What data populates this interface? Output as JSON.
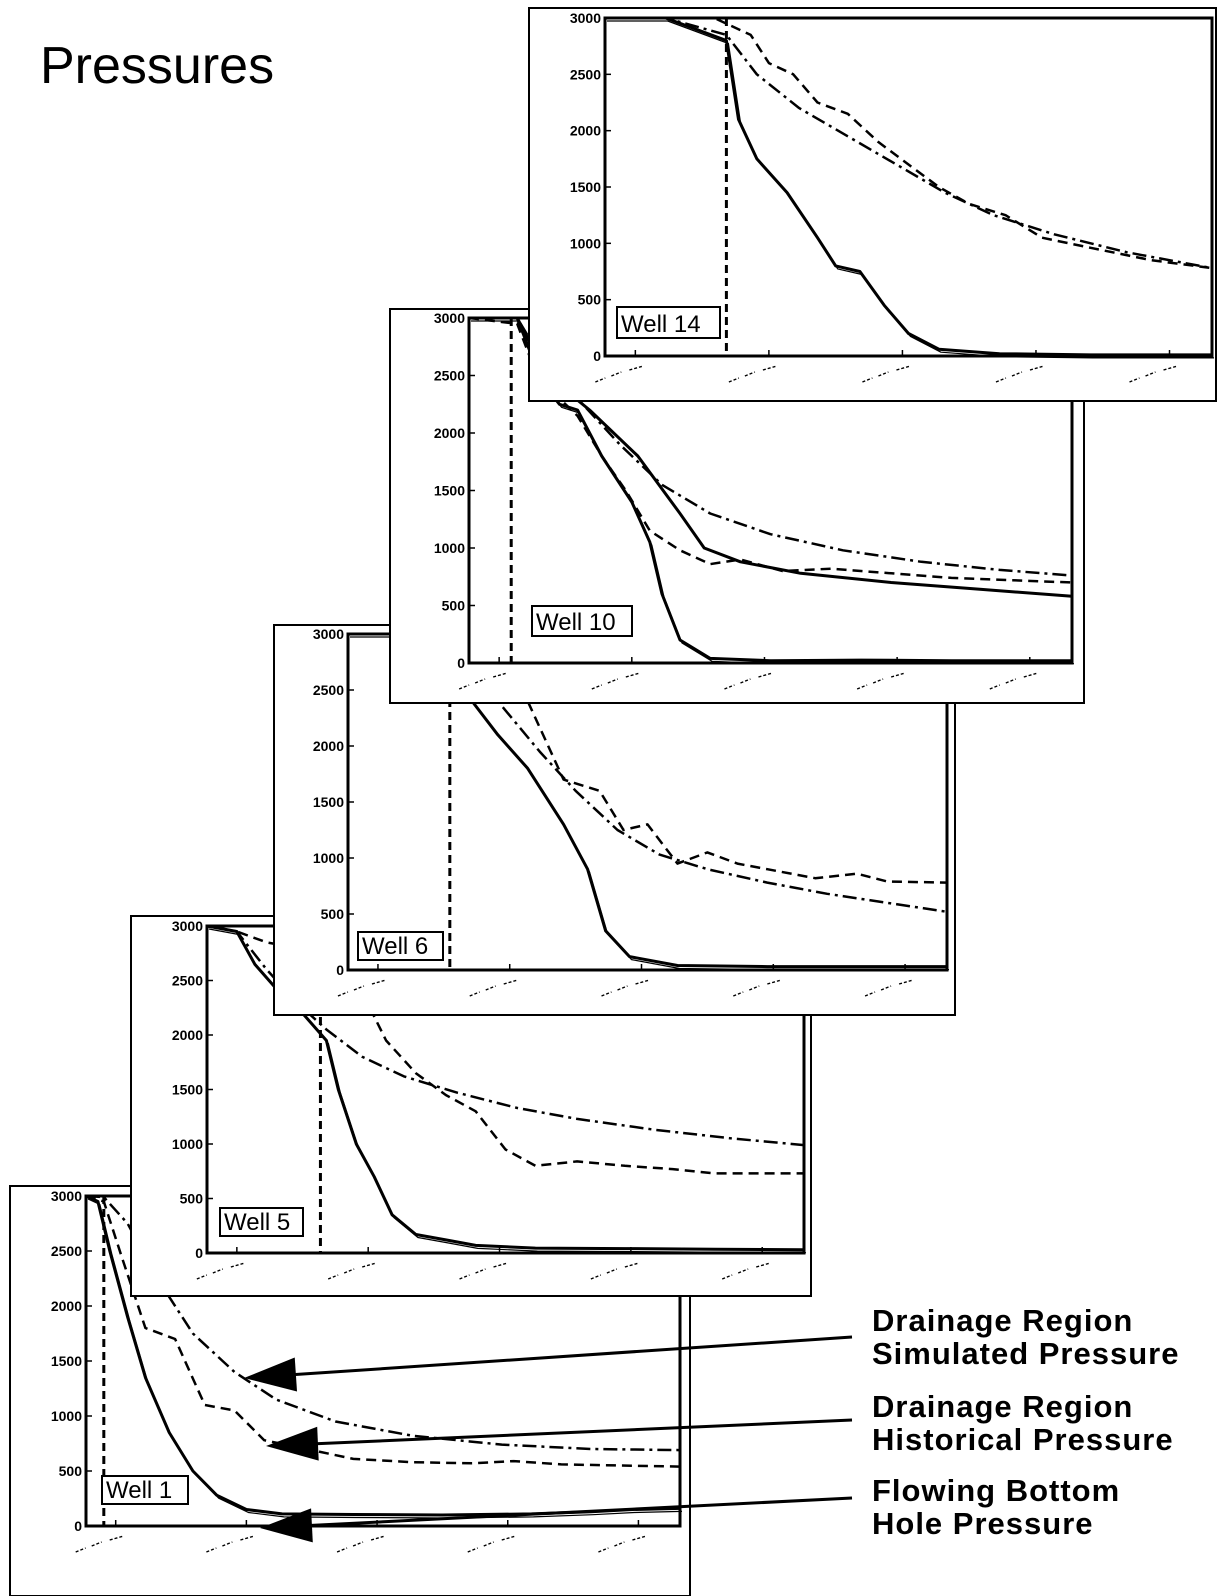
{
  "title": "Pressures",
  "legend": [
    {
      "key": "sim",
      "lines": [
        "Drainage Region",
        "Simulated Pressure"
      ],
      "style": "dash-dot"
    },
    {
      "key": "hist",
      "lines": [
        "Drainage Region",
        "Historical Pressure"
      ],
      "style": "dashed"
    },
    {
      "key": "fbhp",
      "lines": [
        "Flowing Bottom",
        "Hole Pressure"
      ],
      "style": "solid"
    }
  ],
  "chart_data": [
    {
      "type": "line",
      "well_label": "Well 1",
      "ylim": [
        0,
        3000
      ],
      "yticks": [
        0,
        500,
        1000,
        1500,
        2000,
        2500,
        3000
      ],
      "xlim": [
        0,
        1
      ],
      "xticks_legible": false,
      "marker_x": 0.03,
      "series": [
        {
          "key": "sim",
          "style": "dash-dot",
          "points": [
            [
              0,
              3000
            ],
            [
              0.03,
              2990
            ],
            [
              0.07,
              2750
            ],
            [
              0.12,
              2250
            ],
            [
              0.18,
              1750
            ],
            [
              0.25,
              1400
            ],
            [
              0.32,
              1150
            ],
            [
              0.42,
              950
            ],
            [
              0.55,
              820
            ],
            [
              0.7,
              740
            ],
            [
              0.85,
              700
            ],
            [
              1.0,
              690
            ]
          ]
        },
        {
          "key": "hist",
          "style": "dashed",
          "points": [
            [
              0,
              3000
            ],
            [
              0.03,
              2950
            ],
            [
              0.06,
              2450
            ],
            [
              0.1,
              1800
            ],
            [
              0.15,
              1700
            ],
            [
              0.2,
              1100
            ],
            [
              0.25,
              1050
            ],
            [
              0.3,
              780
            ],
            [
              0.38,
              690
            ],
            [
              0.45,
              610
            ],
            [
              0.55,
              580
            ],
            [
              0.65,
              570
            ],
            [
              0.72,
              590
            ],
            [
              0.8,
              560
            ],
            [
              1.0,
              540
            ]
          ]
        },
        {
          "key": "fbhp",
          "style": "solid",
          "points": [
            [
              0,
              3000
            ],
            [
              0.02,
              2950
            ],
            [
              0.04,
              2500
            ],
            [
              0.07,
              1900
            ],
            [
              0.1,
              1350
            ],
            [
              0.14,
              850
            ],
            [
              0.18,
              500
            ],
            [
              0.22,
              280
            ],
            [
              0.27,
              150
            ],
            [
              0.33,
              110
            ],
            [
              0.45,
              105
            ],
            [
              0.6,
              100
            ],
            [
              0.75,
              110
            ],
            [
              0.85,
              130
            ],
            [
              0.92,
              150
            ],
            [
              1.0,
              160
            ]
          ]
        }
      ]
    },
    {
      "type": "line",
      "well_label": "Well 5",
      "ylim": [
        0,
        3000
      ],
      "yticks": [
        0,
        500,
        1000,
        1500,
        2000,
        2500,
        3000
      ],
      "xlim": [
        0,
        1
      ],
      "xticks_legible": false,
      "marker_x": 0.19,
      "series": [
        {
          "key": "sim",
          "style": "dash-dot",
          "points": [
            [
              0,
              3000
            ],
            [
              0.05,
              2950
            ],
            [
              0.1,
              2600
            ],
            [
              0.15,
              2300
            ],
            [
              0.2,
              2050
            ],
            [
              0.26,
              1800
            ],
            [
              0.33,
              1620
            ],
            [
              0.42,
              1470
            ],
            [
              0.52,
              1330
            ],
            [
              0.62,
              1230
            ],
            [
              0.75,
              1130
            ],
            [
              0.88,
              1050
            ],
            [
              1.0,
              990
            ]
          ]
        },
        {
          "key": "hist",
          "style": "dashed",
          "points": [
            [
              0,
              3000
            ],
            [
              0.05,
              2950
            ],
            [
              0.1,
              2850
            ],
            [
              0.15,
              2800
            ],
            [
              0.2,
              2700
            ],
            [
              0.25,
              2500
            ],
            [
              0.3,
              1950
            ],
            [
              0.35,
              1650
            ],
            [
              0.4,
              1450
            ],
            [
              0.45,
              1300
            ],
            [
              0.5,
              950
            ],
            [
              0.55,
              800
            ],
            [
              0.62,
              840
            ],
            [
              0.7,
              800
            ],
            [
              0.78,
              770
            ],
            [
              0.85,
              730
            ],
            [
              1.0,
              730
            ]
          ]
        },
        {
          "key": "fbhp",
          "style": "solid",
          "points": [
            [
              0,
              3000
            ],
            [
              0.05,
              2950
            ],
            [
              0.08,
              2650
            ],
            [
              0.12,
              2400
            ],
            [
              0.16,
              2200
            ],
            [
              0.2,
              1950
            ],
            [
              0.22,
              1500
            ],
            [
              0.25,
              1000
            ],
            [
              0.28,
              700
            ],
            [
              0.31,
              350
            ],
            [
              0.35,
              170
            ],
            [
              0.4,
              120
            ],
            [
              0.45,
              70
            ],
            [
              0.55,
              45
            ],
            [
              0.7,
              40
            ],
            [
              0.85,
              35
            ],
            [
              1.0,
              30
            ]
          ]
        }
      ]
    },
    {
      "type": "line",
      "well_label": "Well 6",
      "ylim": [
        0,
        3000
      ],
      "yticks": [
        0,
        500,
        1000,
        1500,
        2000,
        2500,
        3000
      ],
      "xlim": [
        0,
        1
      ],
      "xticks_legible": false,
      "marker_x": 0.17,
      "series": [
        {
          "key": "sim",
          "style": "dash-dot",
          "points": [
            [
              0,
              3000
            ],
            [
              0.15,
              3000
            ],
            [
              0.2,
              2800
            ],
            [
              0.25,
              2400
            ],
            [
              0.32,
              1950
            ],
            [
              0.38,
              1600
            ],
            [
              0.45,
              1250
            ],
            [
              0.52,
              1030
            ],
            [
              0.6,
              900
            ],
            [
              0.7,
              780
            ],
            [
              0.8,
              680
            ],
            [
              0.9,
              600
            ],
            [
              1.0,
              520
            ]
          ]
        },
        {
          "key": "hist",
          "style": "dashed",
          "points": [
            [
              0,
              3000
            ],
            [
              0.15,
              3000
            ],
            [
              0.2,
              2950
            ],
            [
              0.25,
              2600
            ],
            [
              0.3,
              2400
            ],
            [
              0.36,
              1700
            ],
            [
              0.42,
              1600
            ],
            [
              0.46,
              1250
            ],
            [
              0.5,
              1300
            ],
            [
              0.55,
              950
            ],
            [
              0.6,
              1050
            ],
            [
              0.65,
              950
            ],
            [
              0.7,
              900
            ],
            [
              0.78,
              820
            ],
            [
              0.85,
              860
            ],
            [
              0.9,
              790
            ],
            [
              1.0,
              780
            ]
          ]
        },
        {
          "key": "fbhp",
          "style": "solid",
          "points": [
            [
              0,
              3000
            ],
            [
              0.16,
              3000
            ],
            [
              0.2,
              2450
            ],
            [
              0.25,
              2100
            ],
            [
              0.3,
              1800
            ],
            [
              0.36,
              1300
            ],
            [
              0.4,
              900
            ],
            [
              0.43,
              350
            ],
            [
              0.47,
              120
            ],
            [
              0.55,
              40
            ],
            [
              0.7,
              30
            ],
            [
              0.85,
              30
            ],
            [
              1.0,
              30
            ]
          ]
        }
      ]
    },
    {
      "type": "line",
      "well_label": "Well 10",
      "ylim": [
        0,
        3000
      ],
      "yticks": [
        0,
        500,
        1000,
        1500,
        2000,
        2500,
        3000
      ],
      "xlim": [
        0,
        1
      ],
      "xticks_legible": false,
      "marker_x": 0.07,
      "series": [
        {
          "key": "sim",
          "style": "dash-dot",
          "points": [
            [
              0,
              3000
            ],
            [
              0.08,
              3000
            ],
            [
              0.12,
              2650
            ],
            [
              0.18,
              2300
            ],
            [
              0.25,
              1900
            ],
            [
              0.32,
              1550
            ],
            [
              0.4,
              1300
            ],
            [
              0.5,
              1120
            ],
            [
              0.62,
              980
            ],
            [
              0.75,
              880
            ],
            [
              0.88,
              810
            ],
            [
              1.0,
              760
            ]
          ]
        },
        {
          "key": "hist",
          "style": "dashed",
          "points": [
            [
              0,
              3000
            ],
            [
              0.08,
              2950
            ],
            [
              0.12,
              2400
            ],
            [
              0.15,
              2300
            ],
            [
              0.18,
              2150
            ],
            [
              0.22,
              1800
            ],
            [
              0.26,
              1500
            ],
            [
              0.3,
              1150
            ],
            [
              0.35,
              980
            ],
            [
              0.4,
              860
            ],
            [
              0.45,
              900
            ],
            [
              0.52,
              800
            ],
            [
              0.6,
              820
            ],
            [
              0.7,
              780
            ],
            [
              0.8,
              740
            ],
            [
              0.9,
              720
            ],
            [
              1.0,
              700
            ]
          ]
        },
        {
          "key": "fbhp-upper",
          "style": "solid",
          "points": [
            [
              0,
              3000
            ],
            [
              0.08,
              3000
            ],
            [
              0.13,
              2500
            ],
            [
              0.2,
              2200
            ],
            [
              0.28,
              1800
            ],
            [
              0.35,
              1300
            ],
            [
              0.39,
              1000
            ],
            [
              0.45,
              880
            ],
            [
              0.55,
              780
            ],
            [
              0.7,
              700
            ],
            [
              0.85,
              640
            ],
            [
              1.0,
              580
            ]
          ]
        },
        {
          "key": "fbhp",
          "style": "solid",
          "points": [
            [
              0,
              3000
            ],
            [
              0.08,
              3000
            ],
            [
              0.12,
              2450
            ],
            [
              0.15,
              2250
            ],
            [
              0.18,
              2200
            ],
            [
              0.22,
              1800
            ],
            [
              0.27,
              1400
            ],
            [
              0.3,
              1050
            ],
            [
              0.32,
              600
            ],
            [
              0.35,
              200
            ],
            [
              0.4,
              40
            ],
            [
              0.5,
              20
            ],
            [
              0.65,
              25
            ],
            [
              0.8,
              20
            ],
            [
              1.0,
              20
            ]
          ]
        }
      ]
    },
    {
      "type": "line",
      "well_label": "Well 14",
      "ylim": [
        0,
        3000
      ],
      "yticks": [
        0,
        500,
        1000,
        1500,
        2000,
        2500,
        3000
      ],
      "xlim": [
        0,
        1
      ],
      "xticks_legible": false,
      "marker_x": 0.2,
      "series": [
        {
          "key": "sim",
          "style": "dash-dot",
          "points": [
            [
              0,
              3000
            ],
            [
              0.1,
              3000
            ],
            [
              0.2,
              2850
            ],
            [
              0.25,
              2500
            ],
            [
              0.32,
              2200
            ],
            [
              0.4,
              1950
            ],
            [
              0.48,
              1700
            ],
            [
              0.56,
              1450
            ],
            [
              0.64,
              1250
            ],
            [
              0.74,
              1080
            ],
            [
              0.86,
              920
            ],
            [
              1.0,
              780
            ]
          ]
        },
        {
          "key": "hist",
          "style": "dashed",
          "points": [
            [
              0,
              3000
            ],
            [
              0.18,
              3000
            ],
            [
              0.24,
              2850
            ],
            [
              0.27,
              2600
            ],
            [
              0.31,
              2500
            ],
            [
              0.35,
              2250
            ],
            [
              0.4,
              2150
            ],
            [
              0.45,
              1900
            ],
            [
              0.5,
              1700
            ],
            [
              0.55,
              1500
            ],
            [
              0.6,
              1350
            ],
            [
              0.66,
              1250
            ],
            [
              0.72,
              1050
            ],
            [
              0.8,
              960
            ],
            [
              0.9,
              850
            ],
            [
              1.0,
              780
            ]
          ]
        },
        {
          "key": "fbhp",
          "style": "solid",
          "points": [
            [
              0,
              3000
            ],
            [
              0.1,
              3000
            ],
            [
              0.2,
              2800
            ],
            [
              0.22,
              2100
            ],
            [
              0.25,
              1750
            ],
            [
              0.3,
              1450
            ],
            [
              0.35,
              1050
            ],
            [
              0.38,
              800
            ],
            [
              0.42,
              750
            ],
            [
              0.46,
              450
            ],
            [
              0.5,
              200
            ],
            [
              0.55,
              60
            ],
            [
              0.65,
              20
            ],
            [
              0.8,
              10
            ],
            [
              1.0,
              10
            ]
          ]
        }
      ]
    }
  ]
}
